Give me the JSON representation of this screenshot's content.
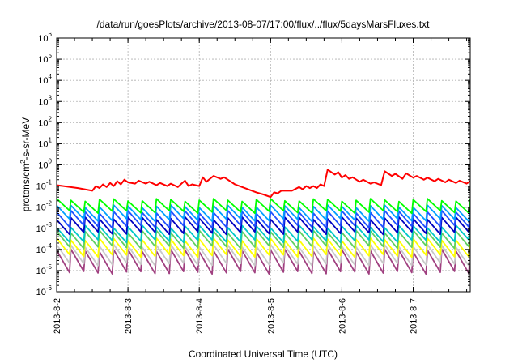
{
  "chart_data": {
    "type": "line",
    "title": "/data/run/goesPlots/archive/2013-08-07/17:00/flux/../flux/5daysMarsFluxes.txt",
    "xlabel": "Coordinated Universal Time (UTC)",
    "ylabel": "protons/cm²-s-sr-MeV",
    "yscale": "log",
    "ylim_exp": [
      -6,
      6
    ],
    "y_ticks": [
      {
        "label": "10",
        "exp": "-6"
      },
      {
        "label": "10",
        "exp": "-5"
      },
      {
        "label": "10",
        "exp": "-4"
      },
      {
        "label": "10",
        "exp": "-3"
      },
      {
        "label": "10",
        "exp": "-2"
      },
      {
        "label": "10",
        "exp": "-1"
      },
      {
        "label": "10",
        "exp": "0"
      },
      {
        "label": "10",
        "exp": "1"
      },
      {
        "label": "10",
        "exp": "2"
      },
      {
        "label": "10",
        "exp": "3"
      },
      {
        "label": "10",
        "exp": "4"
      },
      {
        "label": "10",
        "exp": "5"
      },
      {
        "label": "10",
        "exp": "6"
      }
    ],
    "x_ticks": [
      "2013-8-2",
      "2013-8-3",
      "2013-8-4",
      "2013-8-5",
      "2013-8-6",
      "2013-8-7"
    ],
    "xlim_days": [
      0,
      5.8
    ],
    "grid": true,
    "series": [
      {
        "color": "#ff0000",
        "kind": "red",
        "points": [
          [
            0,
            0.11
          ],
          [
            0.3,
            0.08
          ],
          [
            0.5,
            0.06
          ],
          [
            0.55,
            0.1
          ],
          [
            0.6,
            0.08
          ],
          [
            0.65,
            0.12
          ],
          [
            0.7,
            0.09
          ],
          [
            0.75,
            0.14
          ],
          [
            0.8,
            0.1
          ],
          [
            0.85,
            0.17
          ],
          [
            0.9,
            0.12
          ],
          [
            0.95,
            0.2
          ],
          [
            1.0,
            0.15
          ],
          [
            1.1,
            0.13
          ],
          [
            1.15,
            0.18
          ],
          [
            1.25,
            0.13
          ],
          [
            1.3,
            0.16
          ],
          [
            1.4,
            0.11
          ],
          [
            1.45,
            0.14
          ],
          [
            1.55,
            0.1
          ],
          [
            1.6,
            0.13
          ],
          [
            1.7,
            0.09
          ],
          [
            1.75,
            0.13
          ],
          [
            1.8,
            0.18
          ],
          [
            1.85,
            0.1
          ],
          [
            1.9,
            0.12
          ],
          [
            2.0,
            0.1
          ],
          [
            2.05,
            0.26
          ],
          [
            2.1,
            0.16
          ],
          [
            2.2,
            0.3
          ],
          [
            2.3,
            0.22
          ],
          [
            2.35,
            0.26
          ],
          [
            2.5,
            0.12
          ],
          [
            2.6,
            0.09
          ],
          [
            2.8,
            0.05
          ],
          [
            2.9,
            0.04
          ],
          [
            3.0,
            0.03
          ],
          [
            3.05,
            0.05
          ],
          [
            3.1,
            0.045
          ],
          [
            3.15,
            0.06
          ],
          [
            3.3,
            0.06
          ],
          [
            3.4,
            0.09
          ],
          [
            3.45,
            0.07
          ],
          [
            3.5,
            0.1
          ],
          [
            3.55,
            0.08
          ],
          [
            3.6,
            0.1
          ],
          [
            3.65,
            0.08
          ],
          [
            3.7,
            0.12
          ],
          [
            3.75,
            0.1
          ],
          [
            3.8,
            0.6
          ],
          [
            3.9,
            0.35
          ],
          [
            3.95,
            0.45
          ],
          [
            4.0,
            0.25
          ],
          [
            4.05,
            0.33
          ],
          [
            4.1,
            0.22
          ],
          [
            4.15,
            0.26
          ],
          [
            4.25,
            0.16
          ],
          [
            4.3,
            0.2
          ],
          [
            4.4,
            0.13
          ],
          [
            4.45,
            0.15
          ],
          [
            4.55,
            0.11
          ],
          [
            4.6,
            0.5
          ],
          [
            4.7,
            0.3
          ],
          [
            4.75,
            0.38
          ],
          [
            4.85,
            0.22
          ],
          [
            4.9,
            0.4
          ],
          [
            5.0,
            0.25
          ],
          [
            5.05,
            0.3
          ],
          [
            5.15,
            0.2
          ],
          [
            5.2,
            0.25
          ],
          [
            5.3,
            0.17
          ],
          [
            5.35,
            0.22
          ],
          [
            5.45,
            0.15
          ],
          [
            5.5,
            0.2
          ],
          [
            5.6,
            0.14
          ],
          [
            5.65,
            0.18
          ],
          [
            5.75,
            0.13
          ],
          [
            5.8,
            0.17
          ],
          [
            5.9,
            0.12
          ],
          [
            5.95,
            0.16
          ],
          [
            6.05,
            0.11
          ],
          [
            6.1,
            0.16
          ],
          [
            6.2,
            0.12
          ],
          [
            6.25,
            0.16
          ],
          [
            6.35,
            0.12
          ],
          [
            6.4,
            0.19
          ],
          [
            6.45,
            0.15
          ],
          [
            6.5,
            0.22
          ],
          [
            6.6,
            0.16
          ]
        ]
      },
      {
        "color": "#00ff00",
        "kind": "saw",
        "high": 0.022,
        "low": 0.006
      },
      {
        "color": "#00a0ff",
        "kind": "saw",
        "high": 0.011,
        "low": 0.0025
      },
      {
        "color": "#2050ff",
        "kind": "saw",
        "high": 0.006,
        "low": 0.0012
      },
      {
        "color": "#0000c0",
        "kind": "saw",
        "high": 0.003,
        "low": 0.0006
      },
      {
        "color": "#00c8c8",
        "kind": "saw",
        "high": 0.0012,
        "low": 0.00025
      },
      {
        "color": "#60d060",
        "kind": "saw",
        "high": 0.0007,
        "low": 0.00013
      },
      {
        "color": "#ffff00",
        "kind": "saw",
        "high": 0.0003,
        "low": 5e-05
      },
      {
        "color": "#c8c8c8",
        "kind": "saw",
        "high": 0.00015,
        "low": 2e-05
      },
      {
        "color": "#a04080",
        "kind": "saw",
        "high": 9e-05,
        "low": 8e-06
      }
    ],
    "saw_teeth_per_day": 5
  }
}
